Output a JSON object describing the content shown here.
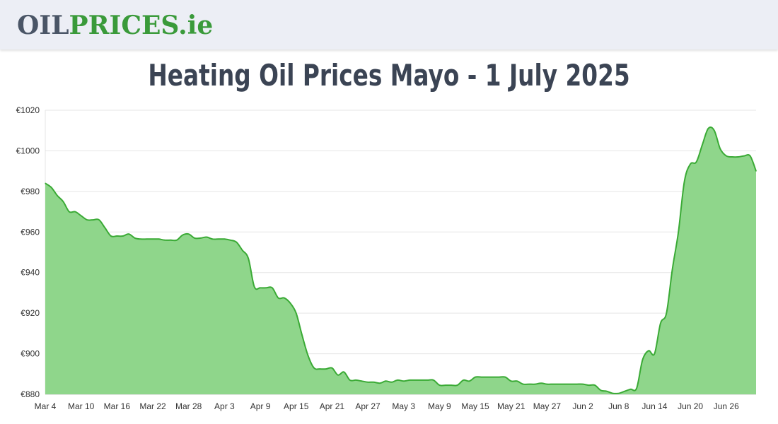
{
  "header": {
    "logo": {
      "part1": "OIL",
      "part2": "PRICES",
      "part3": ".ie"
    }
  },
  "page": {
    "title": "Heating Oil Prices Mayo - 1 July 2025"
  },
  "colors": {
    "line": "#3aaa35",
    "fill": "#8fd68b",
    "grid": "#e5e5e5",
    "brand_green": "#3a9a3a",
    "brand_gray": "#4a5566"
  },
  "chart_data": {
    "type": "area",
    "title": "",
    "xlabel": "",
    "ylabel": "",
    "y_prefix": "€",
    "ylim": [
      880,
      1020
    ],
    "y_ticks": [
      880,
      900,
      920,
      940,
      960,
      980,
      1000,
      1020
    ],
    "y_tick_labels": [
      "€880",
      "€900",
      "€920",
      "€940",
      "€960",
      "€980",
      "€1000",
      "€1020"
    ],
    "x_tick_labels": [
      "Mar 4",
      "Mar 10",
      "Mar 16",
      "Mar 22",
      "Mar 28",
      "Apr 3",
      "Apr 9",
      "Apr 15",
      "Apr 21",
      "Apr 27",
      "May 3",
      "May 9",
      "May 15",
      "May 21",
      "May 27",
      "Jun 2",
      "Jun 8",
      "Jun 14",
      "Jun 20",
      "Jun 26"
    ],
    "x_tick_days": [
      0,
      6,
      12,
      18,
      24,
      30,
      36,
      42,
      48,
      54,
      60,
      66,
      72,
      78,
      84,
      90,
      96,
      102,
      108,
      114
    ],
    "x_range_days": [
      0,
      119
    ],
    "grid": true,
    "legend": "none",
    "series": [
      {
        "x": [
          0,
          1,
          2,
          3,
          4,
          5,
          6,
          7,
          8,
          9,
          10,
          11,
          12,
          13,
          14,
          15,
          16,
          17,
          18,
          19,
          20,
          21,
          22,
          23,
          24,
          25,
          26,
          27,
          28,
          29,
          30,
          31,
          32,
          33,
          34,
          35,
          36,
          37,
          38,
          39,
          40,
          41,
          42,
          43,
          44,
          45,
          46,
          47,
          48,
          49,
          50,
          51,
          52,
          53,
          54,
          55,
          56,
          57,
          58,
          59,
          60,
          61,
          62,
          63,
          64,
          65,
          66,
          67,
          68,
          69,
          70,
          71,
          72,
          73,
          74,
          75,
          76,
          77,
          78,
          79,
          80,
          81,
          82,
          83,
          84,
          85,
          86,
          87,
          88,
          89,
          90,
          91,
          92,
          93,
          94,
          95,
          96,
          97,
          98,
          99,
          100,
          101,
          102,
          103,
          104,
          105,
          106,
          107,
          108,
          109,
          110,
          111,
          112,
          113,
          114,
          115,
          116,
          117,
          118,
          119
        ],
        "values": [
          984,
          982,
          978,
          975,
          970,
          970,
          968,
          966,
          966,
          966,
          962,
          958,
          958,
          958,
          959,
          957,
          956.5,
          956.5,
          956.5,
          956.5,
          956,
          956,
          956,
          958.5,
          959,
          957,
          957,
          957.5,
          956.5,
          956.5,
          956.5,
          956,
          955,
          951,
          947,
          933,
          932.5,
          932.5,
          932.5,
          927.5,
          927.5,
          925,
          920,
          909,
          899,
          893,
          892.5,
          892.5,
          893,
          889.5,
          891,
          887,
          887,
          886.5,
          886,
          886,
          885.5,
          886.5,
          886,
          887,
          886.5,
          887,
          887,
          887,
          887,
          887,
          884.5,
          884.5,
          884.5,
          884.5,
          887,
          886.5,
          888.5,
          888.5,
          888.5,
          888.5,
          888.5,
          888.5,
          886.5,
          886.5,
          885,
          885,
          885,
          885.5,
          885,
          885,
          885,
          885,
          885,
          885,
          885,
          884.5,
          884.5,
          882,
          881.5,
          880.5,
          880.5,
          881.5,
          882.5,
          883,
          897,
          901.5,
          900,
          915,
          920,
          942,
          960,
          985,
          993.5,
          994.5,
          1003,
          1011,
          1010,
          1001,
          997.5,
          997,
          997,
          997.5,
          997.5,
          990
        ]
      }
    ]
  }
}
